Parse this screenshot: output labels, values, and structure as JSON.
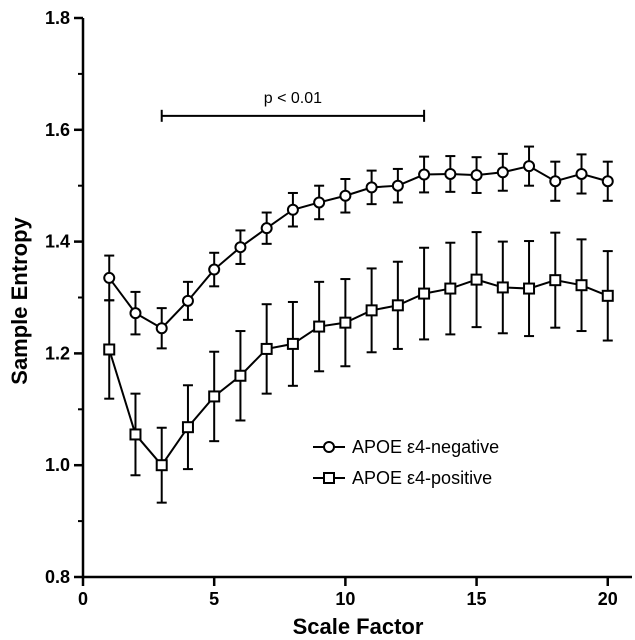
{
  "chart_data": {
    "type": "line",
    "title": "",
    "xlabel": "Scale Factor",
    "ylabel": "Sample Entropy",
    "xlim": [
      0,
      21
    ],
    "ylim": [
      0.8,
      1.8
    ],
    "x_ticks": [
      0,
      5,
      10,
      15,
      20
    ],
    "x_tick_labels": [
      "0",
      "5",
      "10",
      "15",
      "20"
    ],
    "y_ticks": [
      0.8,
      1.0,
      1.2,
      1.4,
      1.6,
      1.8
    ],
    "y_tick_labels": [
      "0.8",
      "1.0",
      "1.2",
      "1.4",
      "1.6",
      "1.8"
    ],
    "grid": false,
    "legend_position": "lower-right",
    "x": [
      1,
      2,
      3,
      4,
      5,
      6,
      7,
      8,
      9,
      10,
      11,
      12,
      13,
      14,
      15,
      16,
      17,
      18,
      19,
      20
    ],
    "series": [
      {
        "name": "APOE ε4-negative",
        "marker": "circle",
        "values": [
          1.335,
          1.272,
          1.245,
          1.294,
          1.35,
          1.39,
          1.424,
          1.457,
          1.47,
          1.482,
          1.497,
          1.5,
          1.52,
          1.521,
          1.519,
          1.524,
          1.535,
          1.508,
          1.521,
          1.508
        ],
        "errors": [
          0.04,
          0.038,
          0.036,
          0.034,
          0.03,
          0.03,
          0.028,
          0.03,
          0.03,
          0.03,
          0.03,
          0.03,
          0.032,
          0.032,
          0.032,
          0.033,
          0.035,
          0.035,
          0.035,
          0.035
        ]
      },
      {
        "name": "APOE ε4-positive",
        "marker": "square",
        "values": [
          1.207,
          1.055,
          1.0,
          1.068,
          1.123,
          1.16,
          1.208,
          1.217,
          1.248,
          1.255,
          1.277,
          1.286,
          1.307,
          1.316,
          1.332,
          1.318,
          1.316,
          1.331,
          1.322,
          1.303
        ],
        "errors": [
          0.088,
          0.073,
          0.067,
          0.075,
          0.08,
          0.08,
          0.08,
          0.075,
          0.08,
          0.078,
          0.075,
          0.078,
          0.082,
          0.082,
          0.085,
          0.082,
          0.085,
          0.085,
          0.082,
          0.08
        ]
      }
    ],
    "annotation": {
      "text": "p < 0.01",
      "x_start": 3,
      "x_end": 13,
      "y": 1.625
    }
  }
}
